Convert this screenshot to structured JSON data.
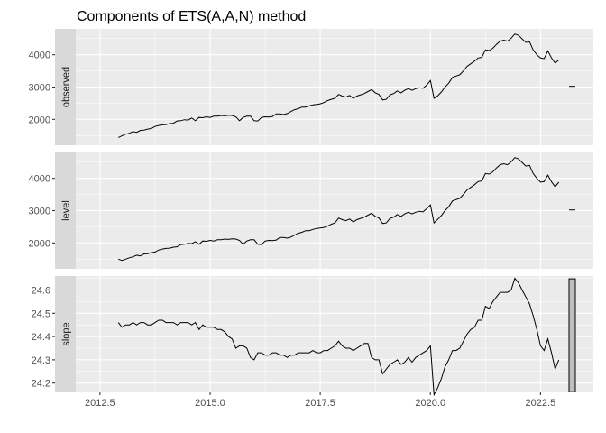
{
  "chart_data": {
    "type": "line",
    "title": "Components of ETS(A,A,N) method",
    "xlabel": "",
    "ylabel": "",
    "grid": true,
    "xlim": [
      2011.95,
      2023.7
    ],
    "x_ticks": [
      2012.5,
      2015.0,
      2017.5,
      2020.0,
      2022.5
    ],
    "x_tick_labels": [
      "2012.5",
      "2015.0",
      "2017.5",
      "2020.0",
      "2022.5"
    ],
    "x": [
      2012.917,
      2013.0,
      2013.083,
      2013.167,
      2013.25,
      2013.333,
      2013.417,
      2013.5,
      2013.583,
      2013.667,
      2013.75,
      2013.833,
      2013.917,
      2014.0,
      2014.083,
      2014.167,
      2014.25,
      2014.333,
      2014.417,
      2014.5,
      2014.583,
      2014.667,
      2014.75,
      2014.833,
      2014.917,
      2015.0,
      2015.083,
      2015.167,
      2015.25,
      2015.333,
      2015.417,
      2015.5,
      2015.583,
      2015.667,
      2015.75,
      2015.833,
      2015.917,
      2016.0,
      2016.083,
      2016.167,
      2016.25,
      2016.333,
      2016.417,
      2016.5,
      2016.583,
      2016.667,
      2016.75,
      2016.833,
      2016.917,
      2017.0,
      2017.083,
      2017.167,
      2017.25,
      2017.333,
      2017.417,
      2017.5,
      2017.583,
      2017.667,
      2017.75,
      2017.833,
      2017.917,
      2018.0,
      2018.083,
      2018.167,
      2018.25,
      2018.333,
      2018.417,
      2018.5,
      2018.583,
      2018.667,
      2018.75,
      2018.833,
      2018.917,
      2019.0,
      2019.083,
      2019.167,
      2019.25,
      2019.333,
      2019.417,
      2019.5,
      2019.583,
      2019.667,
      2019.75,
      2019.833,
      2019.917,
      2020.0,
      2020.083,
      2020.167,
      2020.25,
      2020.333,
      2020.417,
      2020.5,
      2020.583,
      2020.667,
      2020.75,
      2020.833,
      2020.917,
      2021.0,
      2021.083,
      2021.167,
      2021.25,
      2021.333,
      2021.417,
      2021.5,
      2021.583,
      2021.667,
      2021.75,
      2021.833,
      2021.917,
      2022.0,
      2022.083,
      2022.167,
      2022.25,
      2022.333,
      2022.417,
      2022.5,
      2022.583,
      2022.667,
      2022.75,
      2022.833,
      2022.917
    ],
    "panels": [
      {
        "name": "observed",
        "ylim": [
          1200,
          4800
        ],
        "y_ticks": [
          2000,
          3000,
          4000
        ],
        "y_tick_labels": [
          "2000",
          "3000",
          "4000"
        ],
        "values": [
          1440,
          1490,
          1540,
          1570,
          1620,
          1600,
          1660,
          1670,
          1700,
          1720,
          1780,
          1810,
          1830,
          1840,
          1870,
          1880,
          1950,
          1960,
          1990,
          1980,
          2040,
          1960,
          2060,
          2050,
          2080,
          2060,
          2100,
          2100,
          2120,
          2110,
          2130,
          2120,
          2080,
          1960,
          2060,
          2100,
          2100,
          1960,
          1950,
          2060,
          2080,
          2070,
          2090,
          2170,
          2170,
          2150,
          2180,
          2240,
          2300,
          2330,
          2380,
          2380,
          2420,
          2450,
          2460,
          2480,
          2520,
          2580,
          2620,
          2650,
          2770,
          2720,
          2690,
          2740,
          2650,
          2720,
          2760,
          2800,
          2860,
          2920,
          2820,
          2770,
          2600,
          2620,
          2760,
          2800,
          2880,
          2820,
          2900,
          2950,
          2900,
          2950,
          2980,
          2960,
          3060,
          3200,
          2650,
          2730,
          2850,
          3000,
          3120,
          3300,
          3340,
          3380,
          3500,
          3640,
          3720,
          3800,
          3900,
          3920,
          4150,
          4130,
          4200,
          4320,
          4420,
          4450,
          4420,
          4510,
          4640,
          4600,
          4490,
          4380,
          4400,
          4150,
          4000,
          3900,
          3880,
          4120,
          3900,
          3740,
          3840
        ]
      },
      {
        "name": "level",
        "ylim": [
          1200,
          4800
        ],
        "y_ticks": [
          2000,
          3000,
          4000
        ],
        "y_tick_labels": [
          "2000",
          "3000",
          "4000"
        ],
        "values": [
          1500,
          1460,
          1500,
          1540,
          1570,
          1620,
          1600,
          1660,
          1670,
          1700,
          1720,
          1780,
          1810,
          1830,
          1840,
          1870,
          1880,
          1950,
          1960,
          1990,
          1980,
          2040,
          1960,
          2060,
          2050,
          2080,
          2060,
          2100,
          2100,
          2120,
          2110,
          2130,
          2120,
          2080,
          1960,
          2060,
          2100,
          2100,
          1960,
          1950,
          2060,
          2080,
          2070,
          2090,
          2170,
          2170,
          2150,
          2180,
          2240,
          2300,
          2330,
          2380,
          2380,
          2420,
          2450,
          2460,
          2480,
          2520,
          2580,
          2620,
          2770,
          2720,
          2690,
          2740,
          2650,
          2720,
          2760,
          2800,
          2860,
          2920,
          2820,
          2770,
          2600,
          2620,
          2760,
          2800,
          2880,
          2820,
          2900,
          2950,
          2900,
          2950,
          2980,
          2960,
          3060,
          3180,
          2620,
          2730,
          2850,
          3000,
          3120,
          3300,
          3340,
          3380,
          3500,
          3640,
          3720,
          3800,
          3900,
          3920,
          4150,
          4130,
          4200,
          4320,
          4420,
          4450,
          4420,
          4510,
          4640,
          4600,
          4490,
          4380,
          4400,
          4150,
          4000,
          3880,
          3900,
          4100,
          3890,
          3740,
          3880
        ]
      },
      {
        "name": "slope",
        "ylim": [
          24.16,
          24.66
        ],
        "y_ticks": [
          24.2,
          24.3,
          24.4,
          24.5,
          24.6
        ],
        "y_tick_labels": [
          "24.2",
          "24.3",
          "24.4",
          "24.5",
          "24.6"
        ],
        "values": [
          24.46,
          24.44,
          24.45,
          24.45,
          24.46,
          24.45,
          24.46,
          24.46,
          24.45,
          24.45,
          24.46,
          24.47,
          24.47,
          24.46,
          24.46,
          24.46,
          24.45,
          24.46,
          24.46,
          24.46,
          24.45,
          24.46,
          24.43,
          24.45,
          24.44,
          24.44,
          24.44,
          24.43,
          24.43,
          24.42,
          24.4,
          24.39,
          24.35,
          24.36,
          24.36,
          24.35,
          24.31,
          24.3,
          24.33,
          24.33,
          24.32,
          24.32,
          24.33,
          24.33,
          24.32,
          24.32,
          24.31,
          24.32,
          24.32,
          24.33,
          24.33,
          24.33,
          24.33,
          24.34,
          24.33,
          24.33,
          24.34,
          24.34,
          24.35,
          24.36,
          24.38,
          24.36,
          24.35,
          24.35,
          24.34,
          24.35,
          24.36,
          24.37,
          24.37,
          24.31,
          24.3,
          24.3,
          24.24,
          24.26,
          24.28,
          24.29,
          24.3,
          24.28,
          24.29,
          24.31,
          24.29,
          24.31,
          24.32,
          24.33,
          24.34,
          24.36,
          24.15,
          24.18,
          24.22,
          24.27,
          24.3,
          24.34,
          24.34,
          24.35,
          24.38,
          24.41,
          24.43,
          24.44,
          24.47,
          24.47,
          24.53,
          24.52,
          24.55,
          24.57,
          24.59,
          24.59,
          24.59,
          24.6,
          24.65,
          24.63,
          24.6,
          24.57,
          24.54,
          24.49,
          24.43,
          24.36,
          24.34,
          24.39,
          24.33,
          24.26,
          24.3
        ]
      }
    ],
    "range_bars": [
      {
        "panel": "observed",
        "span": [
          2982,
          3062
        ]
      },
      {
        "panel": "level",
        "span": [
          2982,
          3062
        ]
      },
      {
        "panel": "slope",
        "span": [
          24.163,
          24.648
        ]
      }
    ]
  }
}
